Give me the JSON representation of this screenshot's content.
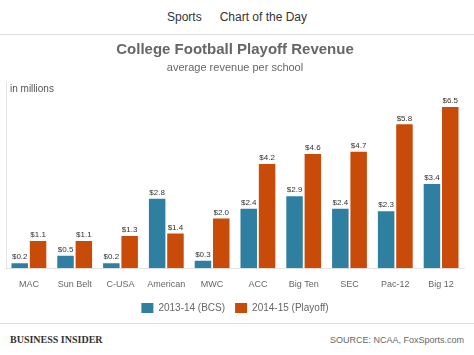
{
  "chart_data": {
    "type": "bar",
    "title": "College Football Playoff Revenue",
    "subtitle": "average revenue per school",
    "ylabel": "in millions",
    "annotations": [
      "Sports",
      "Chart of the Day",
      "BUSINESS INSIDER",
      "SOURCE: NCAA, FoxSports.com"
    ],
    "categories": [
      "MAC",
      "Sun Belt",
      "C-USA",
      "American",
      "MWC",
      "ACC",
      "Big Ten",
      "SEC",
      "Pac-12",
      "Big 12"
    ],
    "series": [
      {
        "name": "2013-14 (BCS)",
        "color": "#2e7fa0",
        "values": [
          0.2,
          0.5,
          0.2,
          2.8,
          0.3,
          2.4,
          2.9,
          2.4,
          2.3,
          3.4
        ],
        "value_labels": [
          "$0.2",
          "$0.5",
          "$0.2",
          "$2.8",
          "$0.3",
          "$2.4",
          "$2.9",
          "$2.4",
          "$2.3",
          "$3.4"
        ]
      },
      {
        "name": "2014-15 (Playoff)",
        "color": "#c84b0a",
        "values": [
          1.1,
          1.1,
          1.3,
          1.4,
          2.0,
          4.2,
          4.6,
          4.7,
          5.8,
          6.5
        ],
        "value_labels": [
          "$1.1",
          "$1.1",
          "$1.3",
          "$1.4",
          "$2.0",
          "$4.2",
          "$4.6",
          "$4.7",
          "$5.8",
          "$6.5"
        ]
      }
    ],
    "ylim": [
      0,
      7.5
    ],
    "grid": false,
    "legend": "bottom",
    "data_labels": true,
    "tick_labels": "x"
  }
}
